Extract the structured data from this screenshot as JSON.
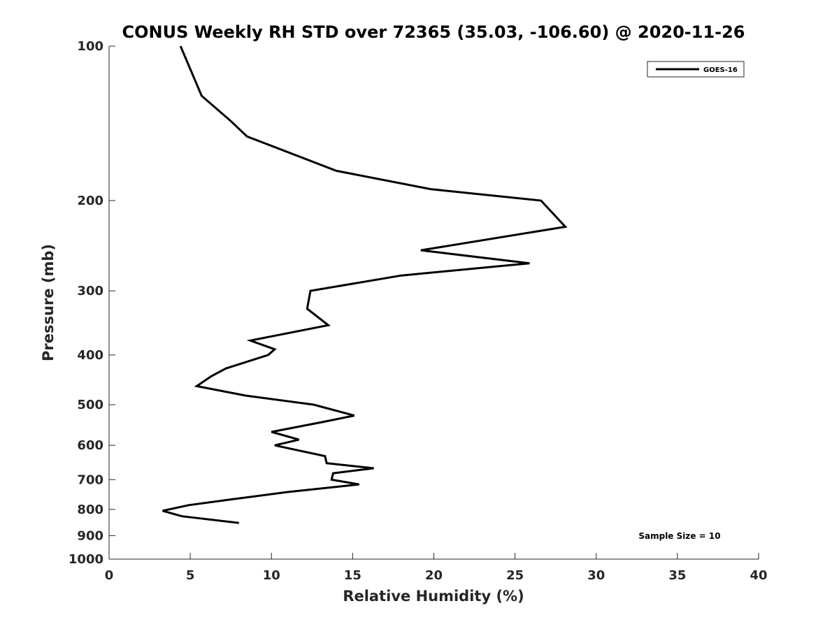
{
  "chart_data": {
    "type": "line",
    "title": "CONUS Weekly RH STD over 72365 (35.03, -106.60) @ 2020-11-26",
    "xlabel": "Relative Humidity (%)",
    "ylabel": "Pressure (mb)",
    "xlim": [
      0,
      40
    ],
    "ylim": [
      100,
      1000
    ],
    "y_scale": "log",
    "y_reversed": true,
    "grid": false,
    "legend_position": "top-right",
    "x_ticks": [
      0,
      5,
      10,
      15,
      20,
      25,
      30,
      35,
      40
    ],
    "y_ticks": [
      100,
      200,
      300,
      400,
      500,
      600,
      700,
      800,
      900,
      1000
    ],
    "series": [
      {
        "name": "GOES-16",
        "color": "#000000",
        "points": [
          {
            "x": 4.4,
            "p": 100
          },
          {
            "x": 5.7,
            "p": 125
          },
          {
            "x": 7.5,
            "p": 140
          },
          {
            "x": 8.5,
            "p": 150
          },
          {
            "x": 14.0,
            "p": 175
          },
          {
            "x": 19.8,
            "p": 190
          },
          {
            "x": 26.6,
            "p": 200
          },
          {
            "x": 28.1,
            "p": 225
          },
          {
            "x": 19.2,
            "p": 250
          },
          {
            "x": 25.9,
            "p": 265
          },
          {
            "x": 18.0,
            "p": 280
          },
          {
            "x": 12.4,
            "p": 300
          },
          {
            "x": 12.2,
            "p": 325
          },
          {
            "x": 13.5,
            "p": 350
          },
          {
            "x": 8.7,
            "p": 375
          },
          {
            "x": 10.2,
            "p": 390
          },
          {
            "x": 9.8,
            "p": 400
          },
          {
            "x": 7.2,
            "p": 425
          },
          {
            "x": 6.3,
            "p": 440
          },
          {
            "x": 5.4,
            "p": 460
          },
          {
            "x": 8.4,
            "p": 480
          },
          {
            "x": 12.6,
            "p": 500
          },
          {
            "x": 15.1,
            "p": 525
          },
          {
            "x": 13.2,
            "p": 540
          },
          {
            "x": 10.0,
            "p": 565
          },
          {
            "x": 11.7,
            "p": 585
          },
          {
            "x": 10.2,
            "p": 600
          },
          {
            "x": 13.3,
            "p": 630
          },
          {
            "x": 13.4,
            "p": 650
          },
          {
            "x": 16.3,
            "p": 665
          },
          {
            "x": 13.8,
            "p": 680
          },
          {
            "x": 13.7,
            "p": 700
          },
          {
            "x": 15.4,
            "p": 715
          },
          {
            "x": 11.0,
            "p": 740
          },
          {
            "x": 7.5,
            "p": 765
          },
          {
            "x": 4.9,
            "p": 785
          },
          {
            "x": 3.3,
            "p": 805
          },
          {
            "x": 4.5,
            "p": 825
          },
          {
            "x": 8.0,
            "p": 850
          }
        ]
      }
    ],
    "annotations": [
      {
        "text": "Sample Size = 10"
      }
    ]
  }
}
